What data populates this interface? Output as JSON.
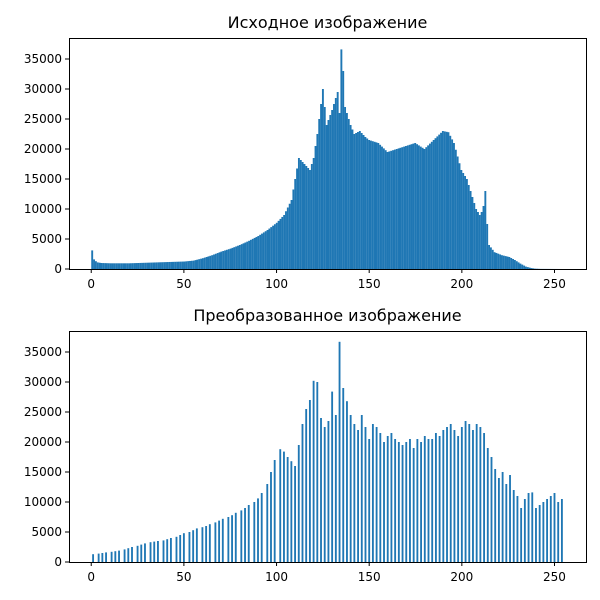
{
  "chart_data": [
    {
      "type": "bar",
      "title": "Исходное изображение",
      "xlabel": "",
      "ylabel": "",
      "xlim": [
        -12,
        267
      ],
      "ylim": [
        0,
        38500
      ],
      "xticks": [
        0,
        50,
        100,
        150,
        200,
        250
      ],
      "yticks": [
        0,
        5000,
        10000,
        15000,
        20000,
        25000,
        30000,
        35000
      ],
      "bins": 256,
      "anchors": [
        [
          0,
          3100
        ],
        [
          1,
          1600
        ],
        [
          2,
          1300
        ],
        [
          3,
          1100
        ],
        [
          5,
          1000
        ],
        [
          10,
          950
        ],
        [
          20,
          950
        ],
        [
          30,
          1050
        ],
        [
          40,
          1150
        ],
        [
          50,
          1250
        ],
        [
          55,
          1400
        ],
        [
          60,
          1800
        ],
        [
          65,
          2300
        ],
        [
          70,
          2900
        ],
        [
          75,
          3400
        ],
        [
          80,
          4000
        ],
        [
          85,
          4700
        ],
        [
          90,
          5500
        ],
        [
          95,
          6500
        ],
        [
          100,
          7700
        ],
        [
          104,
          9000
        ],
        [
          108,
          11500
        ],
        [
          110,
          15000
        ],
        [
          112,
          18500
        ],
        [
          115,
          17500
        ],
        [
          118,
          16500
        ],
        [
          120,
          18500
        ],
        [
          122,
          22500
        ],
        [
          124,
          27500
        ],
        [
          125,
          30000
        ],
        [
          127,
          24000
        ],
        [
          130,
          26500
        ],
        [
          133,
          29500
        ],
        [
          134,
          26000
        ],
        [
          135,
          36600
        ],
        [
          136,
          33000
        ],
        [
          137,
          27000
        ],
        [
          140,
          24000
        ],
        [
          142,
          22500
        ],
        [
          145,
          23000
        ],
        [
          148,
          22000
        ],
        [
          150,
          21500
        ],
        [
          155,
          21000
        ],
        [
          160,
          19500
        ],
        [
          165,
          20000
        ],
        [
          170,
          20500
        ],
        [
          175,
          21000
        ],
        [
          180,
          20000
        ],
        [
          185,
          21500
        ],
        [
          190,
          23000
        ],
        [
          193,
          22800
        ],
        [
          196,
          21000
        ],
        [
          200,
          16500
        ],
        [
          203,
          15000
        ],
        [
          206,
          12000
        ],
        [
          208,
          10000
        ],
        [
          210,
          9000
        ],
        [
          211,
          9500
        ],
        [
          212,
          10500
        ],
        [
          213,
          13000
        ],
        [
          214,
          7500
        ],
        [
          215,
          4000
        ],
        [
          218,
          2800
        ],
        [
          222,
          2300
        ],
        [
          226,
          2000
        ],
        [
          229,
          1500
        ],
        [
          232,
          900
        ],
        [
          235,
          400
        ],
        [
          238,
          150
        ],
        [
          240,
          60
        ],
        [
          243,
          20
        ],
        [
          255,
          0
        ]
      ],
      "values_note": ""
    },
    {
      "type": "bar",
      "title": "Преобразованное изображение",
      "xlabel": "",
      "ylabel": "",
      "xlim": [
        -12,
        267
      ],
      "ylim": [
        0,
        38500
      ],
      "xticks": [
        0,
        50,
        100,
        150,
        200,
        250
      ],
      "yticks": [
        0,
        5000,
        10000,
        15000,
        20000,
        25000,
        30000,
        35000
      ],
      "bar_positions": [
        1,
        4,
        6,
        8,
        11,
        13,
        15,
        18,
        20,
        22,
        25,
        27,
        29,
        32,
        34,
        36,
        39,
        41,
        43,
        46,
        48,
        50,
        53,
        55,
        57,
        60,
        62,
        64,
        67,
        69,
        71,
        74,
        76,
        78,
        81,
        83,
        85,
        88,
        90,
        92,
        95,
        97,
        99,
        102,
        104,
        106,
        108,
        110,
        112,
        114,
        116,
        118,
        120,
        122,
        124,
        126,
        128,
        130,
        132,
        134,
        136,
        138,
        140,
        142,
        144,
        146,
        148,
        150,
        152,
        154,
        156,
        158,
        160,
        162,
        164,
        166,
        168,
        170,
        172,
        174,
        176,
        178,
        180,
        182,
        184,
        186,
        188,
        190,
        192,
        194,
        196,
        198,
        200,
        202,
        204,
        206,
        208,
        210,
        212,
        214,
        216,
        218,
        220,
        222,
        224,
        226,
        228,
        230,
        232,
        234,
        236,
        238,
        240,
        242,
        244,
        246,
        248,
        250,
        252,
        254
      ],
      "bar_values": [
        1300,
        1400,
        1500,
        1600,
        1700,
        1800,
        1900,
        2100,
        2300,
        2500,
        2700,
        2900,
        3100,
        3300,
        3400,
        3500,
        3600,
        3800,
        4000,
        4200,
        4500,
        4800,
        5000,
        5300,
        5600,
        5800,
        6000,
        6300,
        6600,
        6900,
        7200,
        7500,
        7800,
        8200,
        8600,
        9000,
        9500,
        10000,
        10600,
        11500,
        13000,
        15000,
        17000,
        18800,
        18400,
        17500,
        16800,
        16000,
        19500,
        23000,
        25500,
        27000,
        30200,
        30000,
        24000,
        22500,
        23500,
        28400,
        24500,
        36700,
        29000,
        26800,
        24500,
        23000,
        22000,
        24500,
        22500,
        20500,
        23000,
        22500,
        21500,
        20000,
        21000,
        21500,
        20500,
        20000,
        19500,
        20000,
        20500,
        19000,
        20500,
        20000,
        21000,
        20500,
        20500,
        21500,
        21000,
        22000,
        22500,
        23000,
        22000,
        21000,
        22500,
        23500,
        23000,
        22000,
        23000,
        22500,
        21500,
        19000,
        17500,
        15500,
        14000,
        15000,
        13000,
        14500,
        12000,
        11000,
        9000,
        10500,
        11500,
        11600,
        9000,
        9500,
        10000,
        10500,
        11000,
        11500,
        10000,
        10500
      ]
    }
  ]
}
